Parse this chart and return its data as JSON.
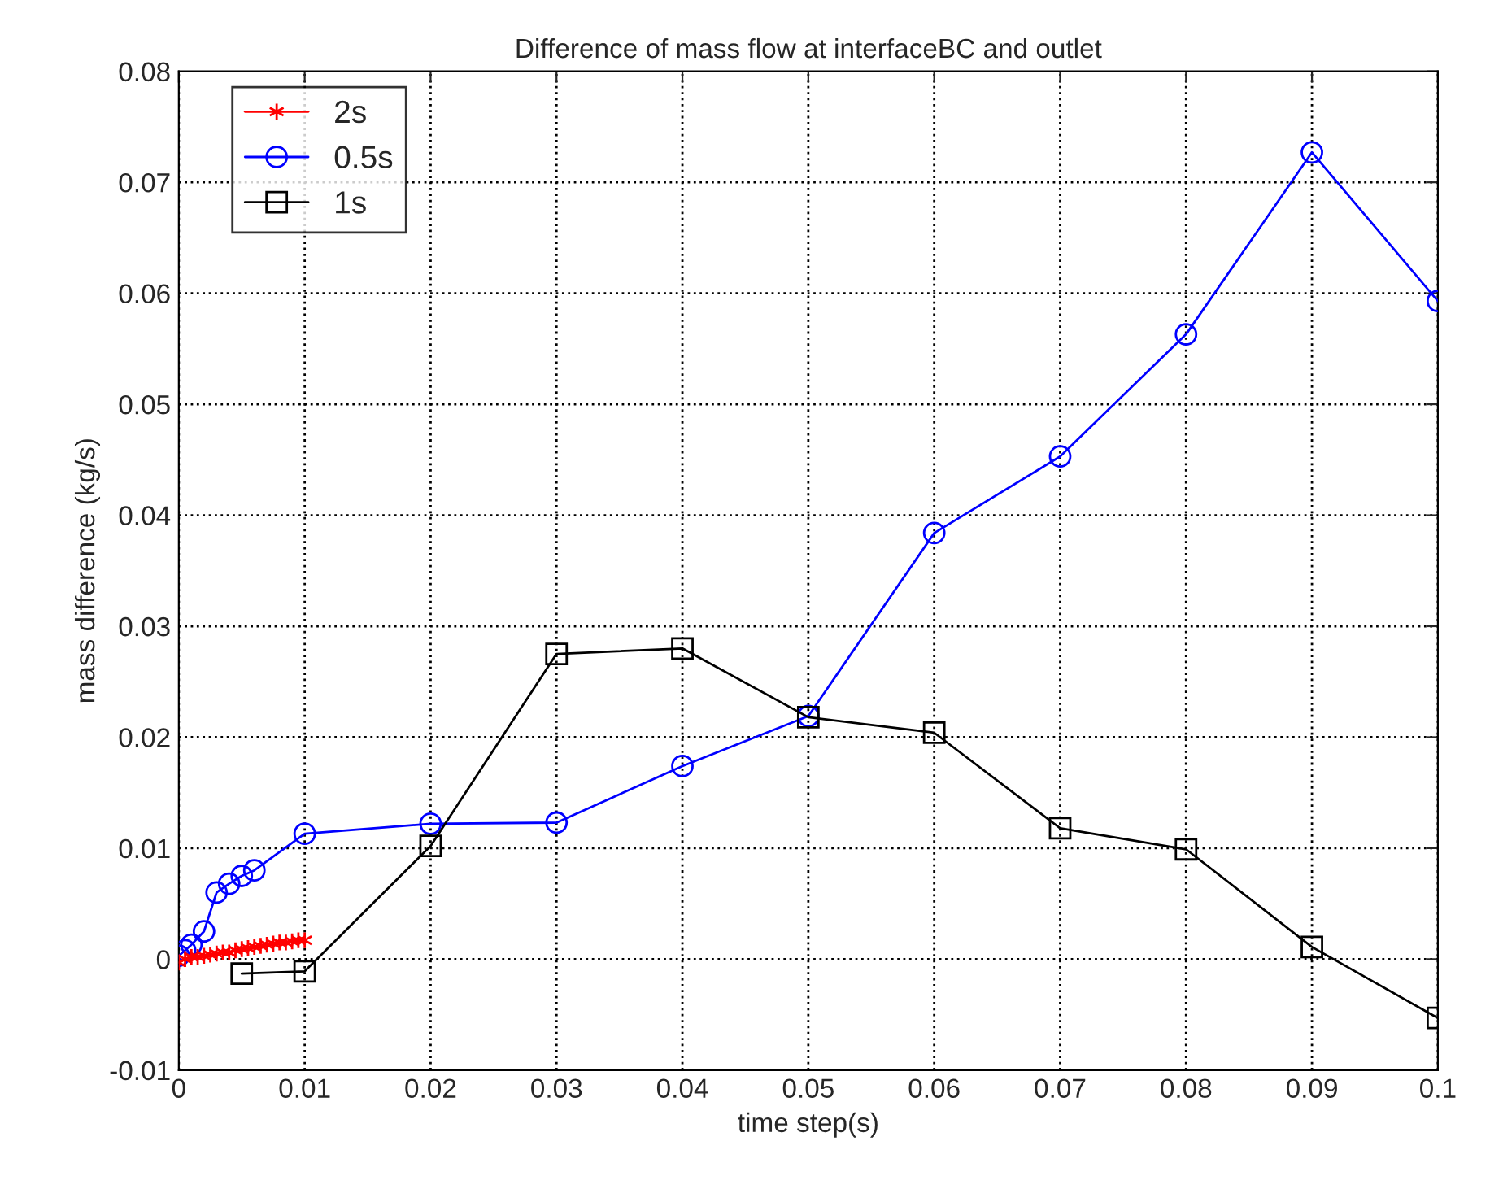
{
  "chart_data": {
    "type": "line",
    "title": "Difference of mass flow at interfaceBC and outlet",
    "xlabel": "time step(s)",
    "ylabel": "mass difference (kg/s)",
    "xlim": [
      0,
      0.1
    ],
    "xticks": [
      0,
      0.01,
      0.02,
      0.03,
      0.04,
      0.05,
      0.06,
      0.07,
      0.08,
      0.09,
      0.1
    ],
    "ylim": [
      -0.01,
      0.08
    ],
    "yticks": [
      -0.01,
      0,
      0.01,
      0.02,
      0.03,
      0.04,
      0.05,
      0.06,
      0.07,
      0.08
    ],
    "grid": true,
    "legend": "top left",
    "line_style": "solid",
    "series": [
      {
        "name": "2s",
        "color": "#ff0000",
        "marker": "cross",
        "x": [
          0,
          0.0005,
          0.001,
          0.0015,
          0.002,
          0.0025,
          0.003,
          0.0035,
          0.004,
          0.0045,
          0.005,
          0.0055,
          0.006,
          0.0065,
          0.007,
          0.0075,
          0.008,
          0.0085,
          0.009,
          0.0095,
          0.01
        ],
        "values": [
          -0.0003,
          0.0,
          0.0002,
          0.0002,
          0.0003,
          0.0004,
          0.0005,
          0.0006,
          0.0006,
          0.0008,
          0.0009,
          0.001,
          0.0011,
          0.0012,
          0.0013,
          0.0014,
          0.0015,
          0.0015,
          0.0016,
          0.0017,
          0.0017
        ]
      },
      {
        "name": "0.5s",
        "color": "#0000ff",
        "marker": "circle",
        "x": [
          0,
          0.0005,
          0.001,
          0.002,
          0.003,
          0.004,
          0.005,
          0.006,
          0.01,
          0.02,
          0.03,
          0.04,
          0.05,
          0.06,
          0.07,
          0.08,
          0.09,
          0.1
        ],
        "values": [
          0.0003,
          0.0008,
          0.0013,
          0.0025,
          0.006,
          0.0068,
          0.0075,
          0.008,
          0.0113,
          0.0122,
          0.0123,
          0.0174,
          0.0219,
          0.0384,
          0.0453,
          0.0563,
          0.0727,
          0.0593
        ]
      },
      {
        "name": "1s",
        "color": "#000000",
        "marker": "square",
        "x": [
          0.005,
          0.01,
          0.02,
          0.03,
          0.04,
          0.05,
          0.06,
          0.07,
          0.08,
          0.09,
          0.1
        ],
        "values": [
          -0.0013,
          -0.0011,
          0.0102,
          0.0275,
          0.028,
          0.0218,
          0.0204,
          0.0118,
          0.0099,
          0.0011,
          -0.0053
        ]
      }
    ]
  }
}
